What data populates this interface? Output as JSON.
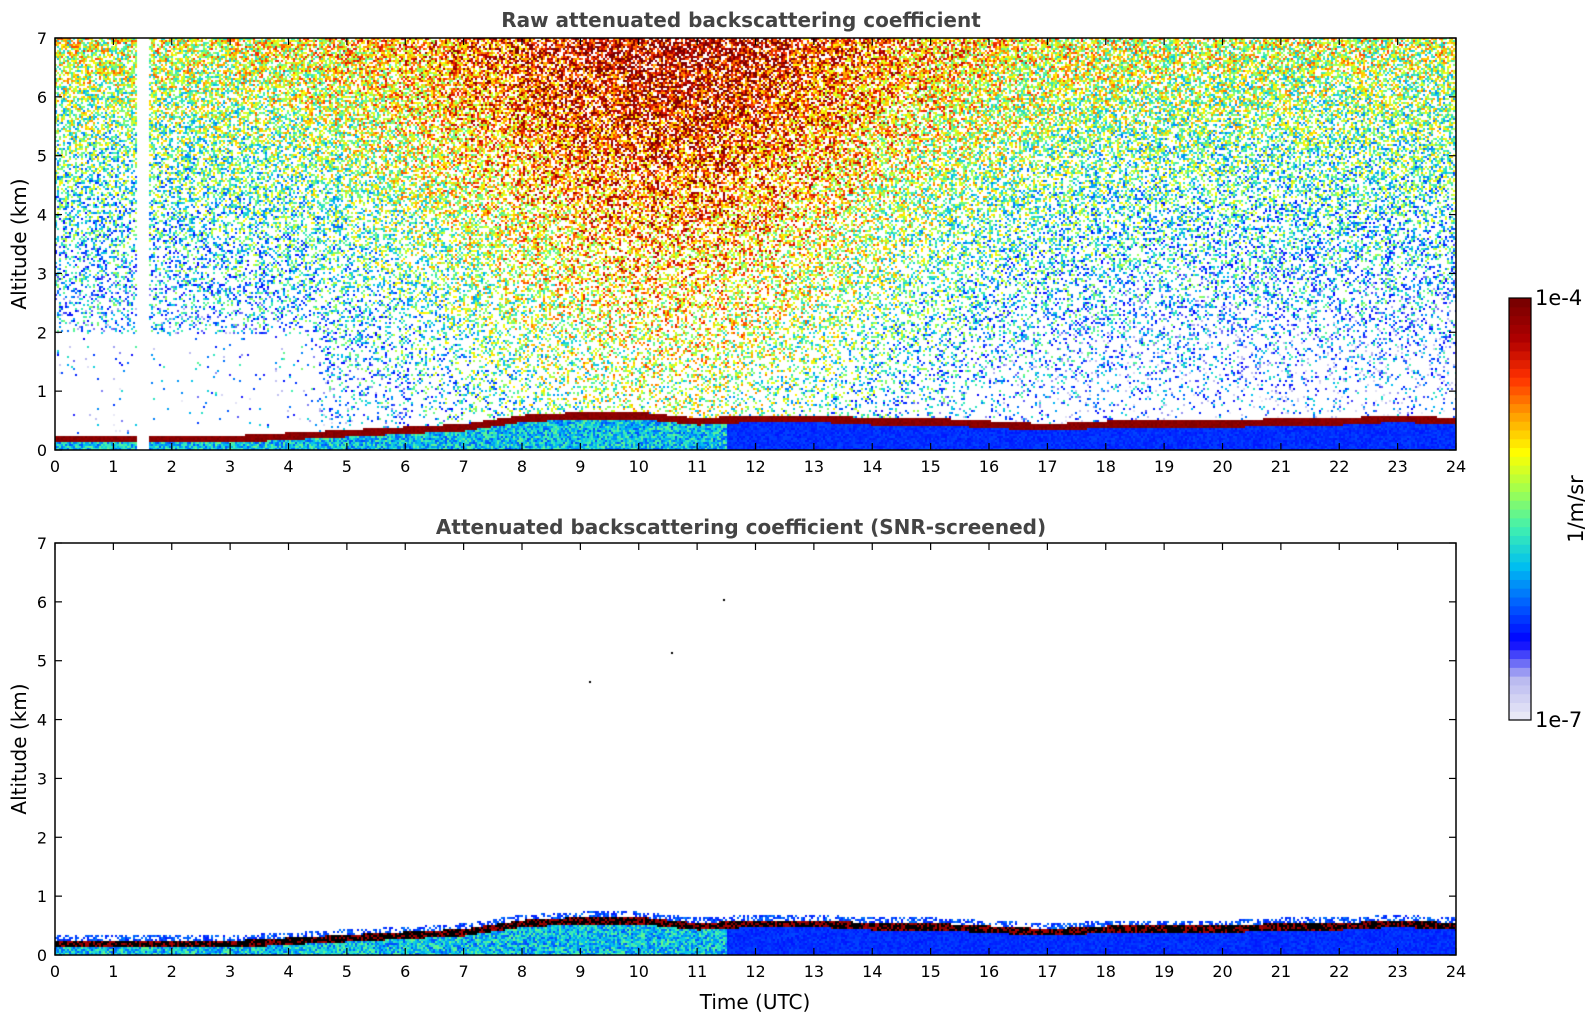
{
  "chart_data": [
    {
      "type": "heatmap",
      "title": "Raw attenuated backscattering coefficient",
      "xlabel": "",
      "ylabel": "Altitude (km)",
      "xlim": [
        0,
        24
      ],
      "ylim": [
        0,
        7
      ],
      "x_ticks": [
        "0",
        "1",
        "2",
        "3",
        "4",
        "5",
        "6",
        "7",
        "8",
        "9",
        "10",
        "11",
        "12",
        "13",
        "14",
        "15",
        "16",
        "17",
        "18",
        "19",
        "20",
        "21",
        "22",
        "23",
        "24"
      ],
      "y_ticks": [
        "0",
        "1",
        "2",
        "3",
        "4",
        "5",
        "6",
        "7"
      ],
      "boundary_layer_top_km": {
        "time_utc": [
          0,
          1,
          2,
          3,
          4,
          5,
          6,
          7,
          8,
          9,
          10,
          11,
          12,
          13,
          14,
          15,
          16,
          17,
          18,
          19,
          20,
          21,
          22,
          23,
          24
        ],
        "altitude": [
          0.2,
          0.2,
          0.2,
          0.2,
          0.25,
          0.3,
          0.35,
          0.4,
          0.55,
          0.6,
          0.6,
          0.5,
          0.55,
          0.55,
          0.5,
          0.5,
          0.45,
          0.4,
          0.45,
          0.45,
          0.45,
          0.5,
          0.5,
          0.55,
          0.5
        ]
      },
      "data_gap_utc": [
        1.4,
        1.6
      ]
    },
    {
      "type": "heatmap",
      "title": "Attenuated backscattering coefficient (SNR-screened)",
      "xlabel": "Time (UTC)",
      "ylabel": "Altitude (km)",
      "xlim": [
        0,
        24
      ],
      "ylim": [
        0,
        7
      ],
      "x_ticks": [
        "0",
        "1",
        "2",
        "3",
        "4",
        "5",
        "6",
        "7",
        "8",
        "9",
        "10",
        "11",
        "12",
        "13",
        "14",
        "15",
        "16",
        "17",
        "18",
        "19",
        "20",
        "21",
        "22",
        "23",
        "24"
      ],
      "y_ticks": [
        "0",
        "1",
        "2",
        "3",
        "4",
        "5",
        "6",
        "7"
      ],
      "boundary_layer_top_km": {
        "time_utc": [
          0,
          1,
          2,
          3,
          4,
          5,
          6,
          7,
          8,
          9,
          10,
          11,
          12,
          13,
          14,
          15,
          16,
          17,
          18,
          19,
          20,
          21,
          22,
          23,
          24
        ],
        "altitude": [
          0.2,
          0.2,
          0.2,
          0.2,
          0.25,
          0.3,
          0.35,
          0.4,
          0.55,
          0.6,
          0.6,
          0.5,
          0.55,
          0.55,
          0.5,
          0.5,
          0.45,
          0.4,
          0.45,
          0.45,
          0.45,
          0.5,
          0.5,
          0.55,
          0.5
        ]
      },
      "isolated_points": [
        [
          9.15,
          4.65
        ],
        [
          10.55,
          5.15
        ],
        [
          11.45,
          6.05
        ]
      ]
    }
  ],
  "colorbar": {
    "label": "1/m/sr",
    "max_label": "1e-4",
    "min_label": "1e-7",
    "range": [
      1e-07,
      0.0001
    ],
    "scale": "log",
    "colormap": [
      "#e8e8f6",
      "#b8b8f0",
      "#0000ff",
      "#0060ff",
      "#00c0f0",
      "#40f0b0",
      "#a0ff50",
      "#ffff00",
      "#ffa000",
      "#ff3000",
      "#b00000",
      "#7a0000"
    ]
  }
}
